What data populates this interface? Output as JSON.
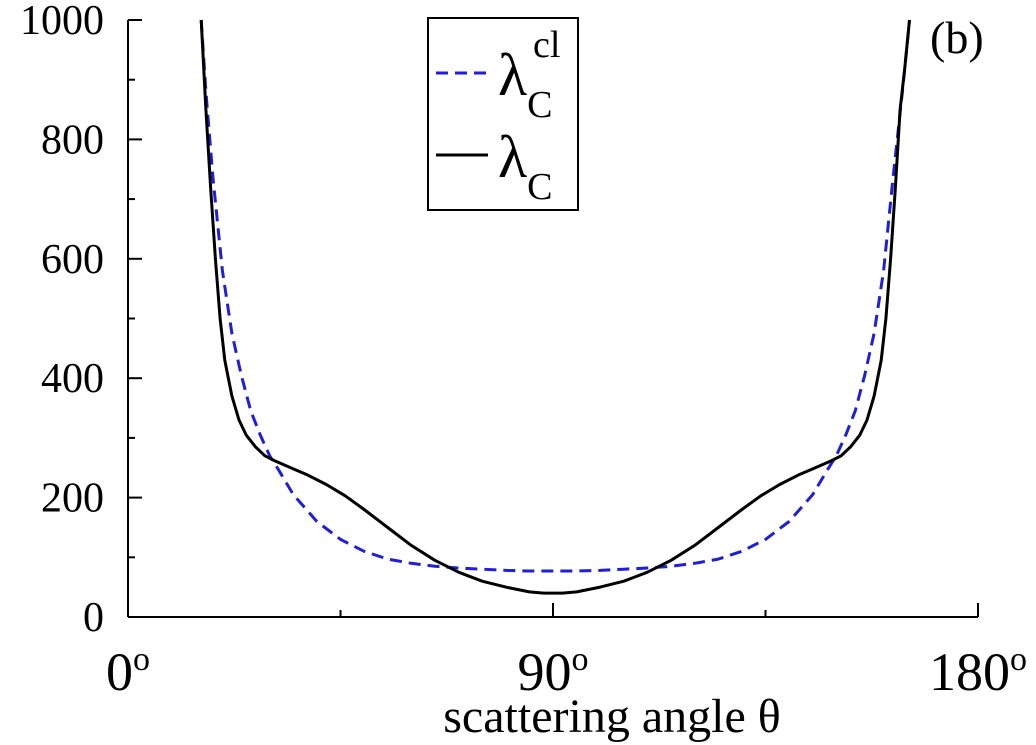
{
  "chart_data": {
    "type": "line",
    "panel_label": "(b)",
    "xlabel": "scattering angle θ",
    "ylabel": "",
    "xlim": [
      0,
      180
    ],
    "ylim": [
      0,
      1000
    ],
    "x_ticks": [
      {
        "value": 0,
        "label": "0",
        "sup": "o"
      },
      {
        "value": 90,
        "label": "90",
        "sup": "o"
      },
      {
        "value": 180,
        "label": "180",
        "sup": "o"
      }
    ],
    "y_ticks": [
      {
        "value": 0,
        "label": "0"
      },
      {
        "value": 200,
        "label": "200"
      },
      {
        "value": 400,
        "label": "400"
      },
      {
        "value": 600,
        "label": "600"
      },
      {
        "value": 800,
        "label": "800"
      },
      {
        "value": 1000,
        "label": "1000"
      }
    ],
    "legend_position": "top-center",
    "series": [
      {
        "name": "λ",
        "name_sub": "C",
        "name_sup": "cl",
        "color": "#1f1fd6",
        "dash": true,
        "x": [
          15.5,
          16.5,
          18,
          20,
          22,
          24,
          26,
          28,
          30,
          32,
          35,
          40,
          45,
          50,
          55,
          60,
          65,
          70,
          75,
          80,
          85,
          90,
          95,
          100,
          105,
          110,
          115,
          120,
          125,
          130,
          135,
          140,
          145,
          148,
          150,
          152,
          154,
          156,
          158,
          160,
          162,
          164,
          165,
          165.5
        ],
        "y": [
          1000,
          880,
          735,
          580,
          475,
          405,
          345,
          305,
          270,
          245,
          205,
          160,
          130,
          110,
          97,
          90,
          85,
          82,
          80,
          78,
          77,
          77,
          77,
          78,
          80,
          82,
          85,
          90,
          97,
          110,
          130,
          160,
          205,
          245,
          270,
          305,
          345,
          405,
          475,
          580,
          735,
          880,
          960,
          1000
        ]
      },
      {
        "name": "λ",
        "name_sub": "C",
        "name_sup": "",
        "color": "#000000",
        "dash": false,
        "x": [
          15.5,
          16.5,
          17.5,
          18.5,
          19.5,
          20.5,
          22,
          23.5,
          25,
          27,
          29,
          31,
          33,
          35,
          38,
          42,
          46,
          50,
          55,
          60,
          65,
          70,
          75,
          80,
          85,
          88,
          90,
          92,
          95,
          100,
          105,
          110,
          115,
          120,
          125,
          130,
          134,
          138,
          142,
          145,
          147,
          149,
          151,
          153,
          155,
          156.5,
          158,
          159.5,
          160.5,
          161.5,
          162.5,
          163.5,
          164.5,
          165.5
        ],
        "y": [
          1000,
          850,
          720,
          600,
          500,
          430,
          370,
          330,
          305,
          285,
          270,
          262,
          255,
          248,
          238,
          222,
          203,
          180,
          150,
          120,
          95,
          75,
          60,
          50,
          42,
          40,
          40,
          40,
          42,
          50,
          60,
          75,
          95,
          120,
          150,
          180,
          203,
          222,
          238,
          248,
          255,
          262,
          270,
          285,
          305,
          330,
          370,
          430,
          500,
          600,
          720,
          850,
          920,
          1000
        ]
      }
    ]
  }
}
